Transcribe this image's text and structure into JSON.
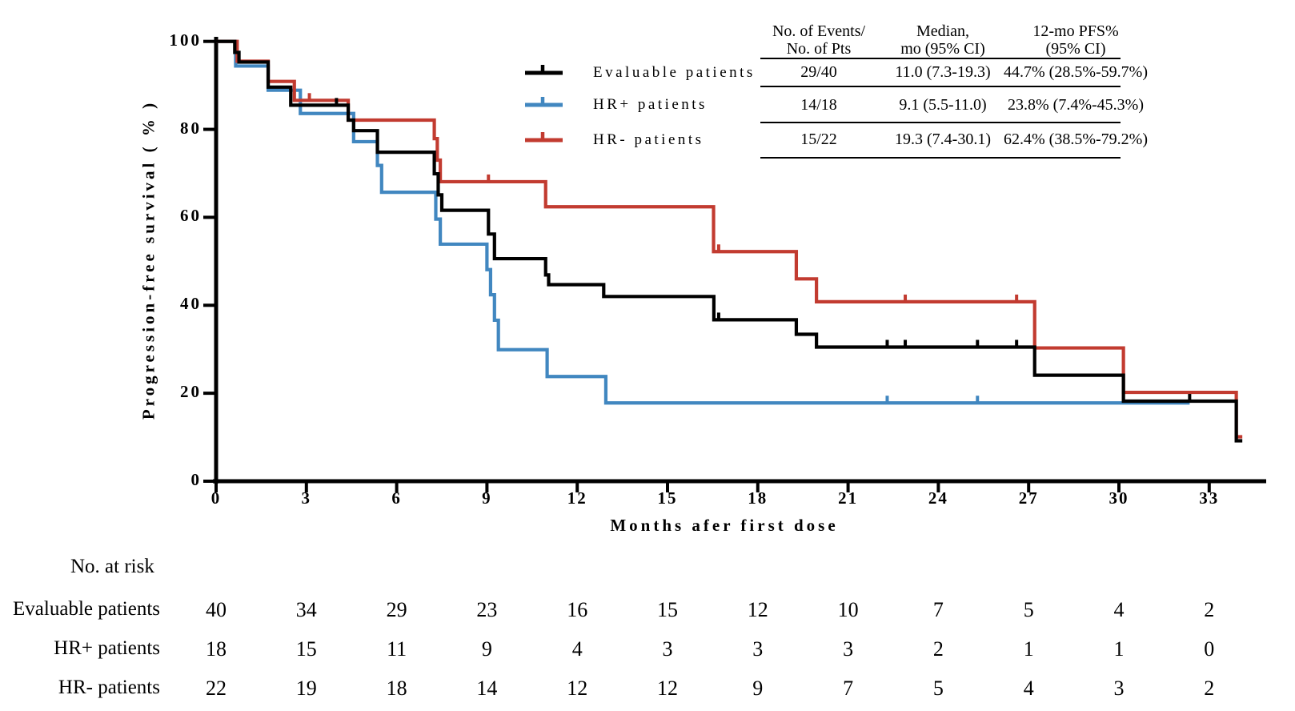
{
  "chart_data": {
    "type": "line",
    "subtype": "kaplan-meier-step",
    "title": "",
    "xlabel": "Months afer first dose",
    "ylabel": "Progression-free survival ( % )",
    "xlim": [
      0,
      35
    ],
    "ylim": [
      0,
      100
    ],
    "xticks": [
      0,
      3,
      6,
      9,
      12,
      15,
      18,
      21,
      24,
      27,
      30,
      33
    ],
    "yticks": [
      0,
      20,
      40,
      60,
      80,
      100
    ],
    "grid": false,
    "legend_position": "upper-center-left",
    "series": [
      {
        "name": "Evaluable patients",
        "color": "#000000",
        "start": [
          0,
          100
        ],
        "steps": [
          [
            0.62,
            97.5
          ],
          [
            0.76,
            95.3
          ],
          [
            1.73,
            89.6
          ],
          [
            2.48,
            85.5
          ],
          [
            4.39,
            82.1
          ],
          [
            4.57,
            79.7
          ],
          [
            5.36,
            74.8
          ],
          [
            7.25,
            69.9
          ],
          [
            7.38,
            65.1
          ],
          [
            7.5,
            61.6
          ],
          [
            9.05,
            56.2
          ],
          [
            9.25,
            50.6
          ],
          [
            10.95,
            46.9
          ],
          [
            11.05,
            44.7
          ],
          [
            12.88,
            42.0
          ],
          [
            16.54,
            36.7
          ],
          [
            19.28,
            33.4
          ],
          [
            19.95,
            30.5
          ],
          [
            27.2,
            24.1
          ],
          [
            30.15,
            18.2
          ],
          [
            33.9,
            9.2
          ]
        ],
        "end_month": 34.1,
        "censor_marks": [
          [
            4.0,
            85.5
          ],
          [
            16.7,
            36.7
          ],
          [
            22.3,
            30.5
          ],
          [
            22.9,
            30.5
          ],
          [
            25.3,
            30.5
          ],
          [
            26.6,
            30.5
          ],
          [
            32.35,
            18.2
          ]
        ]
      },
      {
        "name": "HR+ patients",
        "color": "#4187c0",
        "start": [
          0,
          100
        ],
        "steps": [
          [
            0.65,
            94.4
          ],
          [
            1.73,
            88.9
          ],
          [
            2.8,
            83.6
          ],
          [
            4.57,
            77.2
          ],
          [
            5.36,
            71.8
          ],
          [
            5.5,
            65.7
          ],
          [
            7.3,
            59.6
          ],
          [
            7.45,
            53.9
          ],
          [
            9.0,
            48.1
          ],
          [
            9.12,
            42.4
          ],
          [
            9.25,
            36.6
          ],
          [
            9.38,
            29.9
          ],
          [
            11.0,
            23.8
          ],
          [
            12.95,
            17.8
          ]
        ],
        "end_month": 32.35,
        "censor_marks": [
          [
            22.3,
            17.8
          ],
          [
            25.3,
            17.8
          ]
        ]
      },
      {
        "name": "HR- patients",
        "color": "#c23b30",
        "start": [
          0,
          100
        ],
        "steps": [
          [
            0.7,
            95.5
          ],
          [
            1.73,
            90.9
          ],
          [
            2.6,
            86.6
          ],
          [
            4.39,
            82.1
          ],
          [
            7.25,
            77.9
          ],
          [
            7.35,
            73.0
          ],
          [
            7.45,
            68.1
          ],
          [
            10.95,
            62.4
          ],
          [
            16.53,
            52.2
          ],
          [
            19.28,
            46.0
          ],
          [
            19.95,
            40.8
          ],
          [
            27.2,
            30.3
          ],
          [
            30.15,
            20.2
          ],
          [
            33.9,
            10.1
          ]
        ],
        "end_month": 34.1,
        "censor_marks": [
          [
            3.1,
            86.6
          ],
          [
            9.05,
            68.1
          ],
          [
            16.7,
            52.2
          ],
          [
            22.9,
            40.8
          ],
          [
            26.6,
            40.8
          ]
        ]
      }
    ]
  },
  "stats_table": {
    "headers": [
      [
        "No. of Events/",
        "No. of Pts"
      ],
      [
        "Median,",
        "mo (95% CI)"
      ],
      [
        "12-mo PFS%",
        "(95% CI)"
      ]
    ],
    "rows": [
      {
        "events": "29/40",
        "median": "11.0 (7.3-19.3)",
        "pfs12": "44.7% (28.5%-59.7%)"
      },
      {
        "events": "14/18",
        "median": "9.1 (5.5-11.0)",
        "pfs12": "23.8% (7.4%-45.3%)"
      },
      {
        "events": "15/22",
        "median": "19.3 (7.4-30.1)",
        "pfs12": "62.4% (38.5%-79.2%)"
      }
    ]
  },
  "risk_table": {
    "title": "No. at risk",
    "months": [
      0,
      3,
      6,
      9,
      12,
      15,
      18,
      21,
      24,
      27,
      30,
      33
    ],
    "rows": [
      {
        "label": "Evaluable patients",
        "values": [
          40,
          34,
          29,
          23,
          16,
          15,
          12,
          10,
          7,
          5,
          4,
          2
        ]
      },
      {
        "label": "HR+ patients",
        "values": [
          18,
          15,
          11,
          9,
          4,
          3,
          3,
          3,
          2,
          1,
          1,
          0
        ]
      },
      {
        "label": "HR- patients",
        "values": [
          22,
          19,
          18,
          14,
          12,
          12,
          9,
          7,
          5,
          4,
          3,
          2
        ]
      }
    ]
  }
}
